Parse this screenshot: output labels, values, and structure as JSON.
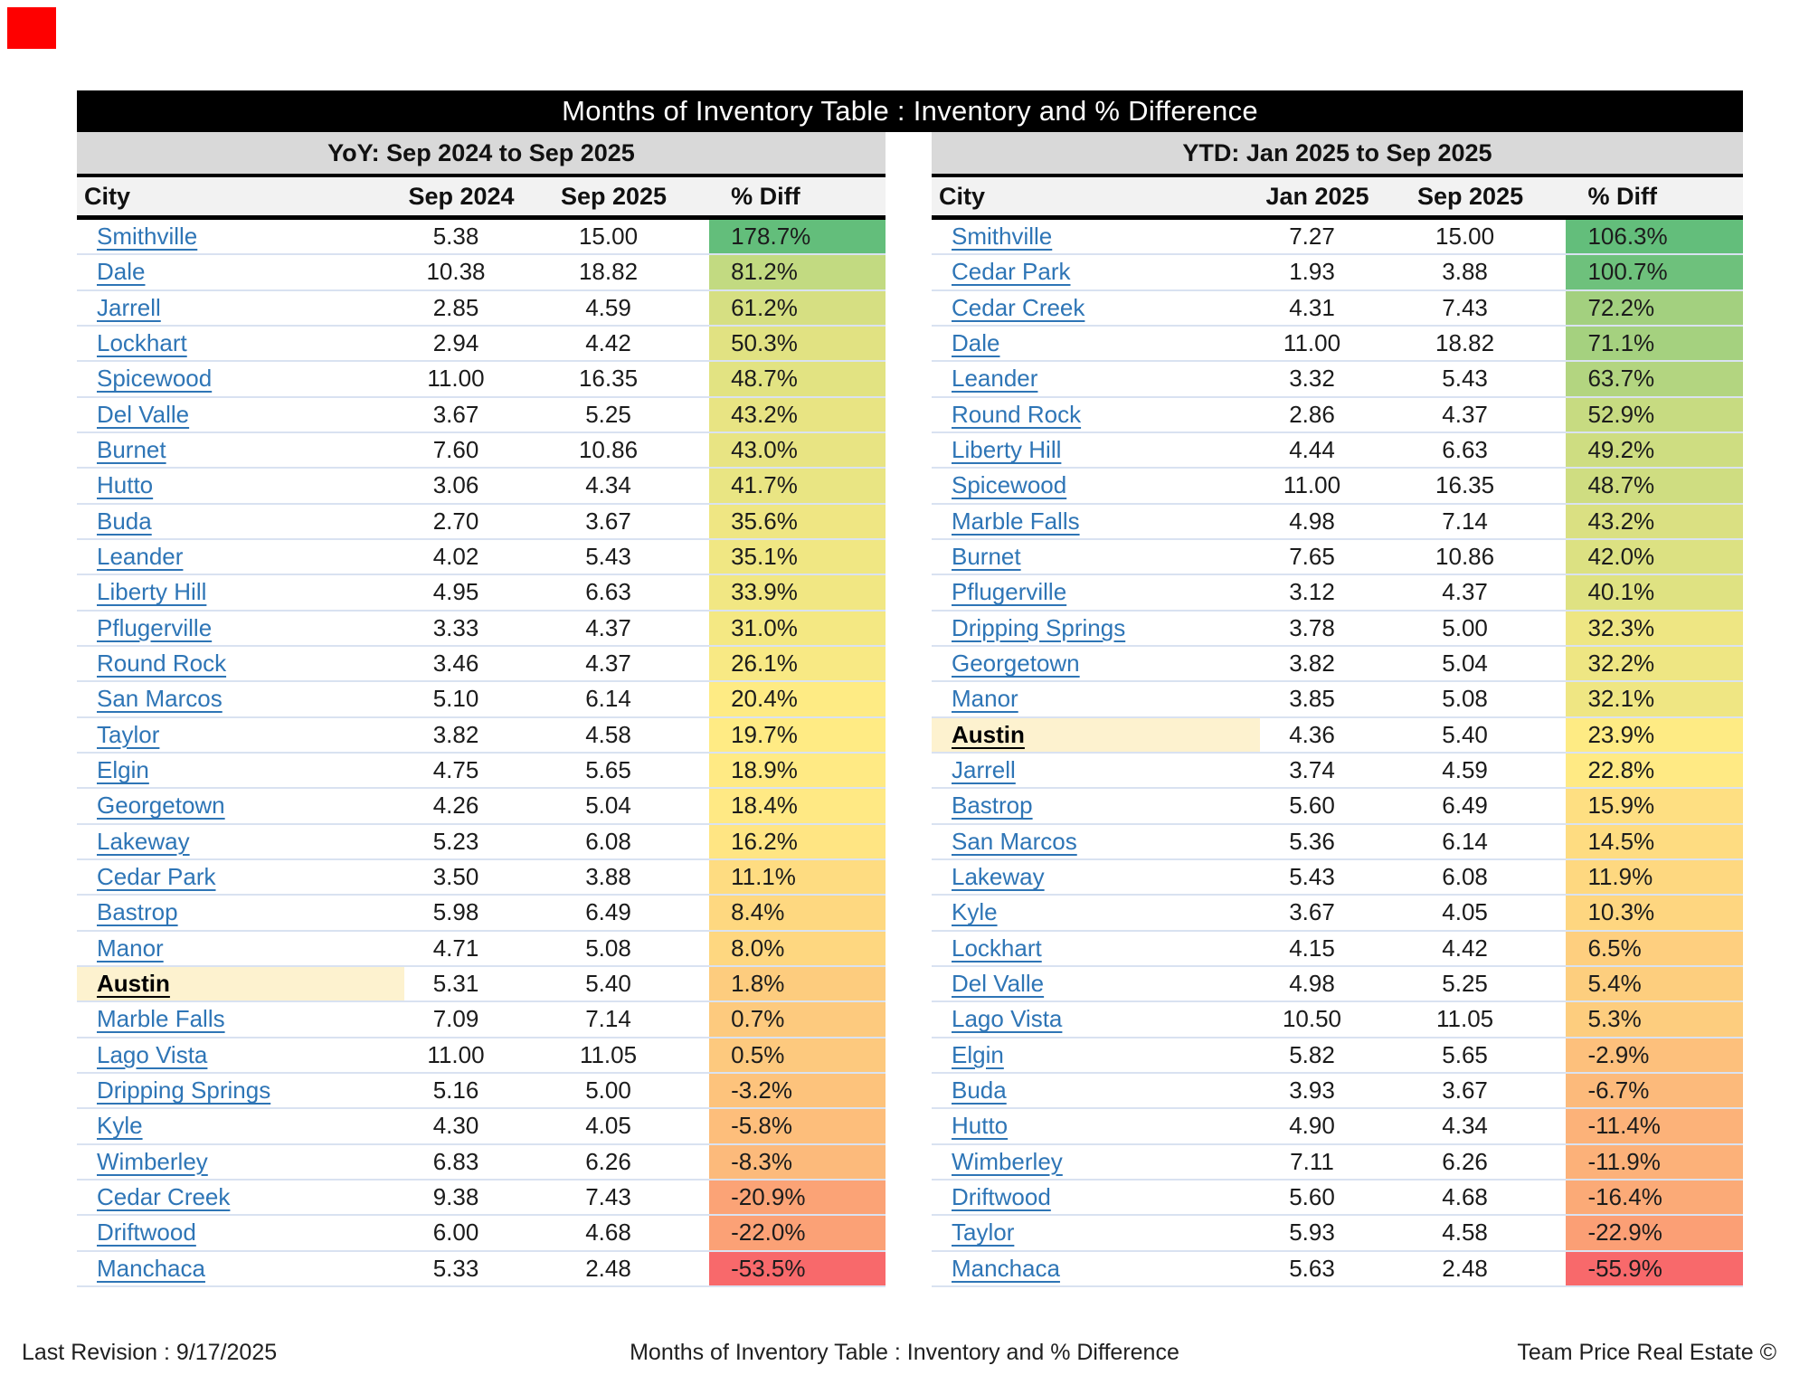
{
  "marker": {
    "color": "#FE0000"
  },
  "title_bar": {
    "text": "Months of Inventory Table : Inventory and % Difference",
    "bg": "#000000",
    "text_color": "#FFFFFF"
  },
  "colors": {
    "scale_min_red": "#F8696B",
    "scale_mid_yellow": "#FFEB84",
    "scale_max_green": "#63BE7B",
    "highlight_city_bg": "#FDF2CF",
    "link_blue": "#2E75B6",
    "row_separator": "#D9E2F1",
    "band_bg": "#D9D9D9",
    "header_bg": "#F2F2F2"
  },
  "tables": [
    {
      "id": "yoy",
      "subtitle": "YoY: Sep 2024 to Sep 2025",
      "columns": [
        "City",
        "Sep 2024",
        "Sep 2025",
        "% Diff"
      ],
      "rows": [
        {
          "city": "Smithville",
          "v1": "5.38",
          "v2": "15.00",
          "diff": "178.7%",
          "diff_value": 178.7,
          "highlight": false
        },
        {
          "city": "Dale",
          "v1": "10.38",
          "v2": "18.82",
          "diff": "81.2%",
          "diff_value": 81.2,
          "highlight": false
        },
        {
          "city": "Jarrell",
          "v1": "2.85",
          "v2": "4.59",
          "diff": "61.2%",
          "diff_value": 61.2,
          "highlight": false
        },
        {
          "city": "Lockhart",
          "v1": "2.94",
          "v2": "4.42",
          "diff": "50.3%",
          "diff_value": 50.3,
          "highlight": false
        },
        {
          "city": "Spicewood",
          "v1": "11.00",
          "v2": "16.35",
          "diff": "48.7%",
          "diff_value": 48.7,
          "highlight": false
        },
        {
          "city": "Del Valle",
          "v1": "3.67",
          "v2": "5.25",
          "diff": "43.2%",
          "diff_value": 43.2,
          "highlight": false
        },
        {
          "city": "Burnet",
          "v1": "7.60",
          "v2": "10.86",
          "diff": "43.0%",
          "diff_value": 43.0,
          "highlight": false
        },
        {
          "city": "Hutto",
          "v1": "3.06",
          "v2": "4.34",
          "diff": "41.7%",
          "diff_value": 41.7,
          "highlight": false
        },
        {
          "city": "Buda",
          "v1": "2.70",
          "v2": "3.67",
          "diff": "35.6%",
          "diff_value": 35.6,
          "highlight": false
        },
        {
          "city": "Leander",
          "v1": "4.02",
          "v2": "5.43",
          "diff": "35.1%",
          "diff_value": 35.1,
          "highlight": false
        },
        {
          "city": "Liberty Hill",
          "v1": "4.95",
          "v2": "6.63",
          "diff": "33.9%",
          "diff_value": 33.9,
          "highlight": false
        },
        {
          "city": "Pflugerville",
          "v1": "3.33",
          "v2": "4.37",
          "diff": "31.0%",
          "diff_value": 31.0,
          "highlight": false
        },
        {
          "city": "Round Rock",
          "v1": "3.46",
          "v2": "4.37",
          "diff": "26.1%",
          "diff_value": 26.1,
          "highlight": false
        },
        {
          "city": "San Marcos",
          "v1": "5.10",
          "v2": "6.14",
          "diff": "20.4%",
          "diff_value": 20.4,
          "highlight": false
        },
        {
          "city": "Taylor",
          "v1": "3.82",
          "v2": "4.58",
          "diff": "19.7%",
          "diff_value": 19.7,
          "highlight": false
        },
        {
          "city": "Elgin",
          "v1": "4.75",
          "v2": "5.65",
          "diff": "18.9%",
          "diff_value": 18.9,
          "highlight": false
        },
        {
          "city": "Georgetown",
          "v1": "4.26",
          "v2": "5.04",
          "diff": "18.4%",
          "diff_value": 18.4,
          "highlight": false
        },
        {
          "city": "Lakeway",
          "v1": "5.23",
          "v2": "6.08",
          "diff": "16.2%",
          "diff_value": 16.2,
          "highlight": false
        },
        {
          "city": "Cedar Park",
          "v1": "3.50",
          "v2": "3.88",
          "diff": "11.1%",
          "diff_value": 11.1,
          "highlight": false
        },
        {
          "city": "Bastrop",
          "v1": "5.98",
          "v2": "6.49",
          "diff": "8.4%",
          "diff_value": 8.4,
          "highlight": false
        },
        {
          "city": "Manor",
          "v1": "4.71",
          "v2": "5.08",
          "diff": "8.0%",
          "diff_value": 8.0,
          "highlight": false
        },
        {
          "city": "Austin",
          "v1": "5.31",
          "v2": "5.40",
          "diff": "1.8%",
          "diff_value": 1.8,
          "highlight": true
        },
        {
          "city": "Marble Falls",
          "v1": "7.09",
          "v2": "7.14",
          "diff": "0.7%",
          "diff_value": 0.7,
          "highlight": false
        },
        {
          "city": "Lago Vista",
          "v1": "11.00",
          "v2": "11.05",
          "diff": "0.5%",
          "diff_value": 0.5,
          "highlight": false
        },
        {
          "city": "Dripping Springs",
          "v1": "5.16",
          "v2": "5.00",
          "diff": "-3.2%",
          "diff_value": -3.2,
          "highlight": false
        },
        {
          "city": "Kyle",
          "v1": "4.30",
          "v2": "4.05",
          "diff": "-5.8%",
          "diff_value": -5.8,
          "highlight": false
        },
        {
          "city": "Wimberley",
          "v1": "6.83",
          "v2": "6.26",
          "diff": "-8.3%",
          "diff_value": -8.3,
          "highlight": false
        },
        {
          "city": "Cedar Creek",
          "v1": "9.38",
          "v2": "7.43",
          "diff": "-20.9%",
          "diff_value": -20.9,
          "highlight": false
        },
        {
          "city": "Driftwood",
          "v1": "6.00",
          "v2": "4.68",
          "diff": "-22.0%",
          "diff_value": -22.0,
          "highlight": false
        },
        {
          "city": "Manchaca",
          "v1": "5.33",
          "v2": "2.48",
          "diff": "-53.5%",
          "diff_value": -53.5,
          "highlight": false
        }
      ]
    },
    {
      "id": "ytd",
      "subtitle": "YTD: Jan 2025 to Sep 2025",
      "columns": [
        "City",
        "Jan 2025",
        "Sep 2025",
        "% Diff"
      ],
      "rows": [
        {
          "city": "Smithville",
          "v1": "7.27",
          "v2": "15.00",
          "diff": "106.3%",
          "diff_value": 106.3,
          "highlight": false
        },
        {
          "city": "Cedar Park",
          "v1": "1.93",
          "v2": "3.88",
          "diff": "100.7%",
          "diff_value": 100.7,
          "highlight": false
        },
        {
          "city": "Cedar Creek",
          "v1": "4.31",
          "v2": "7.43",
          "diff": "72.2%",
          "diff_value": 72.2,
          "highlight": false
        },
        {
          "city": "Dale",
          "v1": "11.00",
          "v2": "18.82",
          "diff": "71.1%",
          "diff_value": 71.1,
          "highlight": false
        },
        {
          "city": "Leander",
          "v1": "3.32",
          "v2": "5.43",
          "diff": "63.7%",
          "diff_value": 63.7,
          "highlight": false
        },
        {
          "city": "Round Rock",
          "v1": "2.86",
          "v2": "4.37",
          "diff": "52.9%",
          "diff_value": 52.9,
          "highlight": false
        },
        {
          "city": "Liberty Hill",
          "v1": "4.44",
          "v2": "6.63",
          "diff": "49.2%",
          "diff_value": 49.2,
          "highlight": false
        },
        {
          "city": "Spicewood",
          "v1": "11.00",
          "v2": "16.35",
          "diff": "48.7%",
          "diff_value": 48.7,
          "highlight": false
        },
        {
          "city": "Marble Falls",
          "v1": "4.98",
          "v2": "7.14",
          "diff": "43.2%",
          "diff_value": 43.2,
          "highlight": false
        },
        {
          "city": "Burnet",
          "v1": "7.65",
          "v2": "10.86",
          "diff": "42.0%",
          "diff_value": 42.0,
          "highlight": false
        },
        {
          "city": "Pflugerville",
          "v1": "3.12",
          "v2": "4.37",
          "diff": "40.1%",
          "diff_value": 40.1,
          "highlight": false
        },
        {
          "city": "Dripping Springs",
          "v1": "3.78",
          "v2": "5.00",
          "diff": "32.3%",
          "diff_value": 32.3,
          "highlight": false
        },
        {
          "city": "Georgetown",
          "v1": "3.82",
          "v2": "5.04",
          "diff": "32.2%",
          "diff_value": 32.2,
          "highlight": false
        },
        {
          "city": "Manor",
          "v1": "3.85",
          "v2": "5.08",
          "diff": "32.1%",
          "diff_value": 32.1,
          "highlight": false
        },
        {
          "city": "Austin",
          "v1": "4.36",
          "v2": "5.40",
          "diff": "23.9%",
          "diff_value": 23.9,
          "highlight": true
        },
        {
          "city": "Jarrell",
          "v1": "3.74",
          "v2": "4.59",
          "diff": "22.8%",
          "diff_value": 22.8,
          "highlight": false
        },
        {
          "city": "Bastrop",
          "v1": "5.60",
          "v2": "6.49",
          "diff": "15.9%",
          "diff_value": 15.9,
          "highlight": false
        },
        {
          "city": "San Marcos",
          "v1": "5.36",
          "v2": "6.14",
          "diff": "14.5%",
          "diff_value": 14.5,
          "highlight": false
        },
        {
          "city": "Lakeway",
          "v1": "5.43",
          "v2": "6.08",
          "diff": "11.9%",
          "diff_value": 11.9,
          "highlight": false
        },
        {
          "city": "Kyle",
          "v1": "3.67",
          "v2": "4.05",
          "diff": "10.3%",
          "diff_value": 10.3,
          "highlight": false
        },
        {
          "city": "Lockhart",
          "v1": "4.15",
          "v2": "4.42",
          "diff": "6.5%",
          "diff_value": 6.5,
          "highlight": false
        },
        {
          "city": "Del Valle",
          "v1": "4.98",
          "v2": "5.25",
          "diff": "5.4%",
          "diff_value": 5.4,
          "highlight": false
        },
        {
          "city": "Lago Vista",
          "v1": "10.50",
          "v2": "11.05",
          "diff": "5.3%",
          "diff_value": 5.3,
          "highlight": false
        },
        {
          "city": "Elgin",
          "v1": "5.82",
          "v2": "5.65",
          "diff": "-2.9%",
          "diff_value": -2.9,
          "highlight": false
        },
        {
          "city": "Buda",
          "v1": "3.93",
          "v2": "3.67",
          "diff": "-6.7%",
          "diff_value": -6.7,
          "highlight": false
        },
        {
          "city": "Hutto",
          "v1": "4.90",
          "v2": "4.34",
          "diff": "-11.4%",
          "diff_value": -11.4,
          "highlight": false
        },
        {
          "city": "Wimberley",
          "v1": "7.11",
          "v2": "6.26",
          "diff": "-11.9%",
          "diff_value": -11.9,
          "highlight": false
        },
        {
          "city": "Driftwood",
          "v1": "5.60",
          "v2": "4.68",
          "diff": "-16.4%",
          "diff_value": -16.4,
          "highlight": false
        },
        {
          "city": "Taylor",
          "v1": "5.93",
          "v2": "4.58",
          "diff": "-22.9%",
          "diff_value": -22.9,
          "highlight": false
        },
        {
          "city": "Manchaca",
          "v1": "5.63",
          "v2": "2.48",
          "diff": "-55.9%",
          "diff_value": -55.9,
          "highlight": false
        }
      ]
    }
  ],
  "footer": {
    "left": "Last Revision : 9/17/2025",
    "center": "Months of Inventory Table : Inventory and % Difference",
    "right": "Team Price Real Estate ©"
  }
}
